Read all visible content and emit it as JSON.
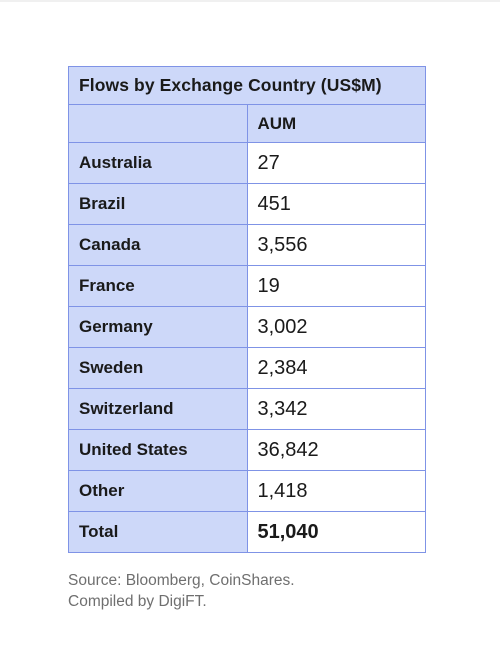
{
  "table": {
    "title": "Flows by Exchange Country (US$M)",
    "columns": [
      "",
      "AUM"
    ],
    "rows": [
      {
        "country": "Australia",
        "aum": "27"
      },
      {
        "country": "Brazil",
        "aum": "451"
      },
      {
        "country": "Canada",
        "aum": "3,556"
      },
      {
        "country": "France",
        "aum": "19"
      },
      {
        "country": "Germany",
        "aum": "3,002"
      },
      {
        "country": "Sweden",
        "aum": "2,384"
      },
      {
        "country": "Switzerland",
        "aum": "3,342"
      },
      {
        "country": "United States",
        "aum": "36,842"
      },
      {
        "country": "Other",
        "aum": "1,418"
      }
    ],
    "total": {
      "label": "Total",
      "aum": "51,040"
    }
  },
  "source": {
    "line1": "Source: Bloomberg, CoinShares.",
    "line2": "Compiled by DigiFT."
  },
  "colors": {
    "header_fill": "#cdd8f9",
    "border": "#7f93e6"
  },
  "chart_data": {
    "type": "table",
    "title": "Flows by Exchange Country (US$M)",
    "columns": [
      "",
      "AUM"
    ],
    "categories": [
      "Australia",
      "Brazil",
      "Canada",
      "France",
      "Germany",
      "Sweden",
      "Switzerland",
      "United States",
      "Other",
      "Total"
    ],
    "values": [
      27,
      451,
      3556,
      19,
      3002,
      2384,
      3342,
      36842,
      1418,
      51040
    ]
  }
}
